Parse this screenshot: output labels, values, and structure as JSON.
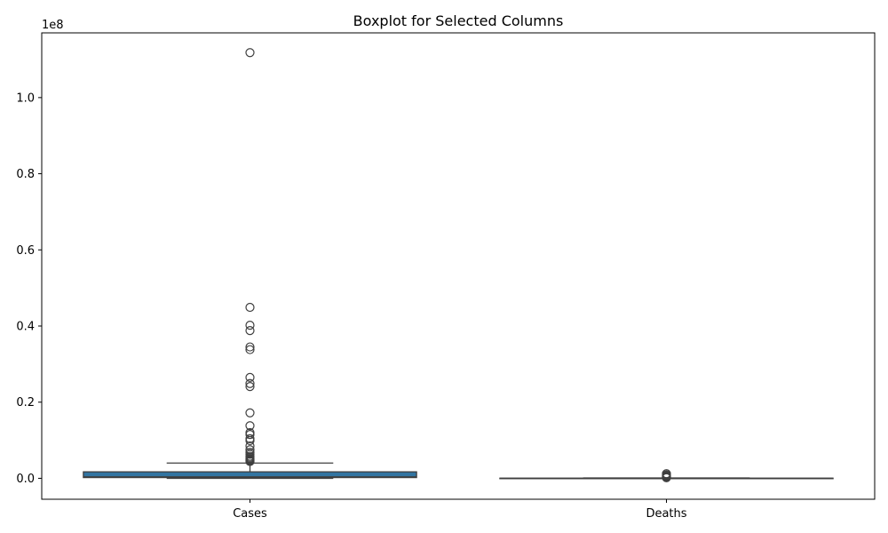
{
  "chart_data": {
    "type": "box",
    "title": "Boxplot for Selected Columns",
    "xlabel": "",
    "ylabel": "",
    "y_scale_label": "1e8",
    "ylim": [
      -0.055,
      1.17
    ],
    "yticks": [
      0.0,
      0.2,
      0.4,
      0.6,
      0.8,
      1.0
    ],
    "ytick_labels": [
      "0.0",
      "0.2",
      "0.4",
      "0.6",
      "0.8",
      "1.0"
    ],
    "categories": [
      "Cases",
      "Deaths"
    ],
    "box_color": "#3274a1",
    "line_color": "#3f3f3f",
    "boxes": [
      {
        "name": "Cases",
        "whisker_low": 0.0,
        "q1": 0.002,
        "median": 0.004,
        "q3": 0.017,
        "whisker_high": 0.04,
        "outliers": [
          1.118,
          0.449,
          0.402,
          0.388,
          0.345,
          0.338,
          0.265,
          0.249,
          0.241,
          0.172,
          0.138,
          0.12,
          0.115,
          0.104,
          0.099,
          0.085,
          0.075,
          0.068,
          0.063,
          0.058,
          0.055,
          0.052,
          0.05,
          0.048,
          0.046,
          0.044
        ]
      },
      {
        "name": "Deaths",
        "whisker_low": 0.0,
        "q1": 0.0,
        "median": 0.0,
        "q3": 0.0003,
        "whisker_high": 0.0008,
        "outliers": [
          0.012,
          0.009,
          0.007,
          0.005,
          0.004,
          0.003,
          0.002,
          0.0015
        ]
      }
    ]
  }
}
